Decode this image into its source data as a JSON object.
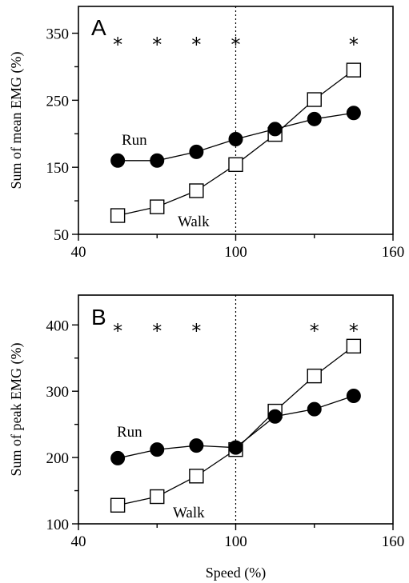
{
  "chart_data": [
    {
      "panel": "A",
      "type": "line",
      "ylabel": "Sum of mean EMG (%)",
      "xlim": [
        40,
        160
      ],
      "ylim": [
        50,
        390
      ],
      "xticks": [
        40,
        100,
        160
      ],
      "yticks": [
        50,
        150,
        250,
        350
      ],
      "xticks_minor": [
        70,
        130
      ],
      "yticks_minor": [
        100,
        200,
        300
      ],
      "reference_x": 100,
      "x": [
        55,
        70,
        85,
        100,
        115,
        130,
        145
      ],
      "series": [
        {
          "name": "Run",
          "marker": "filled-circle",
          "values": [
            160,
            160,
            173,
            192,
            207,
            222,
            231
          ]
        },
        {
          "name": "Walk",
          "marker": "open-square",
          "values": [
            78,
            91,
            115,
            154,
            199,
            251,
            295
          ]
        }
      ],
      "significance_x": [
        55,
        70,
        85,
        100,
        145
      ],
      "significance_symbol": "*"
    },
    {
      "panel": "B",
      "type": "line",
      "xlabel": "Speed (%)",
      "ylabel": "Sum of peak EMG (%)",
      "xlim": [
        40,
        160
      ],
      "ylim": [
        100,
        445
      ],
      "xticks": [
        40,
        100,
        160
      ],
      "yticks": [
        100,
        200,
        300,
        400
      ],
      "xticks_minor": [
        70,
        130
      ],
      "yticks_minor": [
        150,
        250,
        350
      ],
      "reference_x": 100,
      "x": [
        55,
        70,
        85,
        100,
        115,
        130,
        145
      ],
      "series": [
        {
          "name": "Run",
          "marker": "filled-circle",
          "values": [
            199,
            212,
            218,
            215,
            262,
            273,
            293
          ]
        },
        {
          "name": "Walk",
          "marker": "open-square",
          "values": [
            128,
            141,
            172,
            212,
            270,
            323,
            368
          ]
        }
      ],
      "significance_x": [
        55,
        70,
        85,
        130,
        145
      ],
      "significance_symbol": "*"
    }
  ]
}
